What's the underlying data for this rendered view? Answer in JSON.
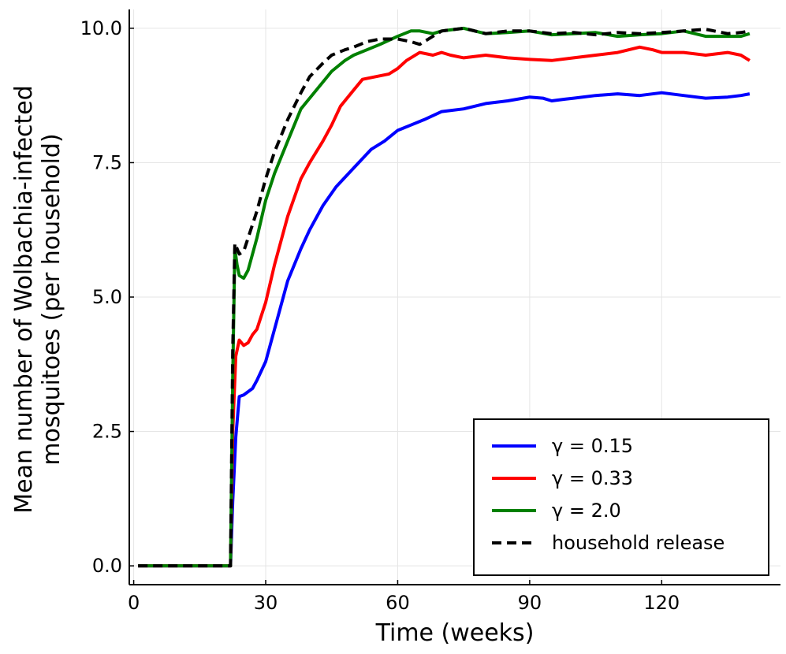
{
  "chart_data": {
    "type": "line",
    "title": "",
    "xlabel": "Time (weeks)",
    "ylabel": [
      "Mean number of Wolbachia-infected",
      "mosquitoes (per household)"
    ],
    "xlim": [
      -1,
      147
    ],
    "ylim": [
      -0.35,
      10.35
    ],
    "xticks": [
      0,
      30,
      60,
      90,
      120
    ],
    "yticks": [
      0.0,
      2.5,
      5.0,
      7.5,
      10.0
    ],
    "xtick_labels": [
      "0",
      "30",
      "60",
      "90",
      "120"
    ],
    "ytick_labels": [
      "0.0",
      "2.5",
      "5.0",
      "7.5",
      "10.0"
    ],
    "grid": true,
    "legend_position": "bottom-right",
    "series": [
      {
        "name": "γ = 0.15",
        "color": "#0000ff",
        "dash": "solid",
        "points": [
          [
            1,
            0
          ],
          [
            22,
            0
          ],
          [
            22.5,
            1.2
          ],
          [
            23.2,
            2.4
          ],
          [
            24,
            3.15
          ],
          [
            25,
            3.18
          ],
          [
            27,
            3.3
          ],
          [
            28,
            3.45
          ],
          [
            30,
            3.8
          ],
          [
            32,
            4.4
          ],
          [
            35,
            5.3
          ],
          [
            38,
            5.9
          ],
          [
            40,
            6.25
          ],
          [
            43,
            6.7
          ],
          [
            46,
            7.05
          ],
          [
            50,
            7.4
          ],
          [
            54,
            7.75
          ],
          [
            57,
            7.9
          ],
          [
            60,
            8.1
          ],
          [
            63,
            8.2
          ],
          [
            66,
            8.3
          ],
          [
            70,
            8.45
          ],
          [
            75,
            8.5
          ],
          [
            80,
            8.6
          ],
          [
            85,
            8.65
          ],
          [
            90,
            8.72
          ],
          [
            93,
            8.7
          ],
          [
            95,
            8.65
          ],
          [
            98,
            8.68
          ],
          [
            100,
            8.7
          ],
          [
            105,
            8.75
          ],
          [
            110,
            8.78
          ],
          [
            115,
            8.75
          ],
          [
            120,
            8.8
          ],
          [
            125,
            8.75
          ],
          [
            130,
            8.7
          ],
          [
            135,
            8.72
          ],
          [
            138,
            8.75
          ],
          [
            140,
            8.78
          ]
        ]
      },
      {
        "name": "γ = 0.33",
        "color": "#ff0000",
        "dash": "solid",
        "points": [
          [
            1,
            0
          ],
          [
            22,
            0
          ],
          [
            22.5,
            2.5
          ],
          [
            23.2,
            3.9
          ],
          [
            24,
            4.2
          ],
          [
            25,
            4.1
          ],
          [
            26,
            4.15
          ],
          [
            27,
            4.3
          ],
          [
            28,
            4.4
          ],
          [
            30,
            4.9
          ],
          [
            32,
            5.6
          ],
          [
            35,
            6.5
          ],
          [
            38,
            7.2
          ],
          [
            40,
            7.5
          ],
          [
            43,
            7.9
          ],
          [
            45,
            8.2
          ],
          [
            47,
            8.55
          ],
          [
            50,
            8.85
          ],
          [
            52,
            9.05
          ],
          [
            55,
            9.1
          ],
          [
            58,
            9.15
          ],
          [
            60,
            9.25
          ],
          [
            62,
            9.4
          ],
          [
            65,
            9.55
          ],
          [
            68,
            9.5
          ],
          [
            70,
            9.55
          ],
          [
            72,
            9.5
          ],
          [
            75,
            9.45
          ],
          [
            80,
            9.5
          ],
          [
            85,
            9.45
          ],
          [
            90,
            9.42
          ],
          [
            95,
            9.4
          ],
          [
            100,
            9.45
          ],
          [
            105,
            9.5
          ],
          [
            110,
            9.55
          ],
          [
            115,
            9.65
          ],
          [
            118,
            9.6
          ],
          [
            120,
            9.55
          ],
          [
            125,
            9.55
          ],
          [
            130,
            9.5
          ],
          [
            135,
            9.55
          ],
          [
            138,
            9.5
          ],
          [
            140,
            9.4
          ]
        ]
      },
      {
        "name": "γ = 2.0",
        "color": "#008000",
        "dash": "solid",
        "points": [
          [
            1,
            0
          ],
          [
            22,
            0
          ],
          [
            22.5,
            3.5
          ],
          [
            23,
            5.9
          ],
          [
            23.5,
            5.6
          ],
          [
            24,
            5.4
          ],
          [
            25,
            5.35
          ],
          [
            26,
            5.5
          ],
          [
            28,
            6.1
          ],
          [
            30,
            6.8
          ],
          [
            32,
            7.3
          ],
          [
            35,
            7.9
          ],
          [
            38,
            8.5
          ],
          [
            40,
            8.7
          ],
          [
            43,
            9.0
          ],
          [
            45,
            9.2
          ],
          [
            48,
            9.4
          ],
          [
            50,
            9.5
          ],
          [
            53,
            9.6
          ],
          [
            56,
            9.7
          ],
          [
            60,
            9.85
          ],
          [
            63,
            9.95
          ],
          [
            65,
            9.95
          ],
          [
            68,
            9.9
          ],
          [
            70,
            9.95
          ],
          [
            75,
            10.0
          ],
          [
            80,
            9.9
          ],
          [
            85,
            9.92
          ],
          [
            90,
            9.95
          ],
          [
            95,
            9.88
          ],
          [
            100,
            9.9
          ],
          [
            105,
            9.92
          ],
          [
            110,
            9.85
          ],
          [
            115,
            9.88
          ],
          [
            120,
            9.9
          ],
          [
            125,
            9.95
          ],
          [
            130,
            9.85
          ],
          [
            135,
            9.85
          ],
          [
            138,
            9.85
          ],
          [
            140,
            9.9
          ]
        ]
      },
      {
        "name": "household release",
        "color": "#000000",
        "dash": "dashed",
        "points": [
          [
            1,
            0
          ],
          [
            22,
            0
          ],
          [
            22.5,
            4.0
          ],
          [
            23,
            6.0
          ],
          [
            23.5,
            5.9
          ],
          [
            24,
            5.8
          ],
          [
            25,
            5.85
          ],
          [
            26,
            6.1
          ],
          [
            28,
            6.6
          ],
          [
            30,
            7.2
          ],
          [
            32,
            7.7
          ],
          [
            35,
            8.3
          ],
          [
            38,
            8.8
          ],
          [
            40,
            9.1
          ],
          [
            43,
            9.35
          ],
          [
            45,
            9.5
          ],
          [
            48,
            9.6
          ],
          [
            50,
            9.65
          ],
          [
            53,
            9.75
          ],
          [
            56,
            9.8
          ],
          [
            60,
            9.8
          ],
          [
            63,
            9.75
          ],
          [
            65,
            9.7
          ],
          [
            68,
            9.85
          ],
          [
            70,
            9.95
          ],
          [
            75,
            10.0
          ],
          [
            80,
            9.9
          ],
          [
            85,
            9.95
          ],
          [
            90,
            9.95
          ],
          [
            95,
            9.9
          ],
          [
            100,
            9.92
          ],
          [
            105,
            9.88
          ],
          [
            110,
            9.92
          ],
          [
            115,
            9.9
          ],
          [
            120,
            9.92
          ],
          [
            125,
            9.95
          ],
          [
            130,
            9.98
          ],
          [
            135,
            9.9
          ],
          [
            138,
            9.92
          ],
          [
            140,
            9.95
          ]
        ]
      }
    ]
  }
}
